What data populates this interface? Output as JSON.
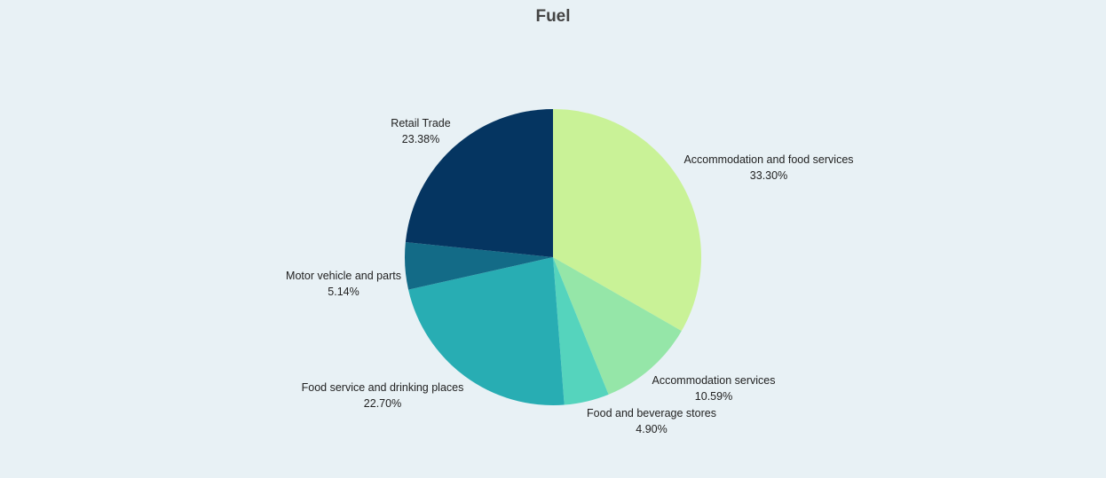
{
  "chart_data": {
    "type": "pie",
    "title": "Fuel",
    "slices": [
      {
        "label": "Accommodation and food services",
        "value": 33.3,
        "value_label": "33.30%",
        "color": "#c9f297"
      },
      {
        "label": "Accommodation services",
        "value": 10.59,
        "value_label": "10.59%",
        "color": "#95e6a8"
      },
      {
        "label": "Food and beverage stores",
        "value": 4.9,
        "value_label": "4.90%",
        "color": "#55d4bd"
      },
      {
        "label": "Food service and drinking places",
        "value": 22.7,
        "value_label": "22.70%",
        "color": "#28adb3"
      },
      {
        "label": "Motor vehicle and parts",
        "value": 5.14,
        "value_label": "5.14%",
        "color": "#136b87"
      },
      {
        "label": "Retail Trade",
        "value": 23.38,
        "value_label": "23.38%",
        "color": "#053561"
      }
    ],
    "start_angle": "12 o'clock",
    "direction": "clockwise",
    "legend": "none",
    "background": "#e8f1f5"
  }
}
